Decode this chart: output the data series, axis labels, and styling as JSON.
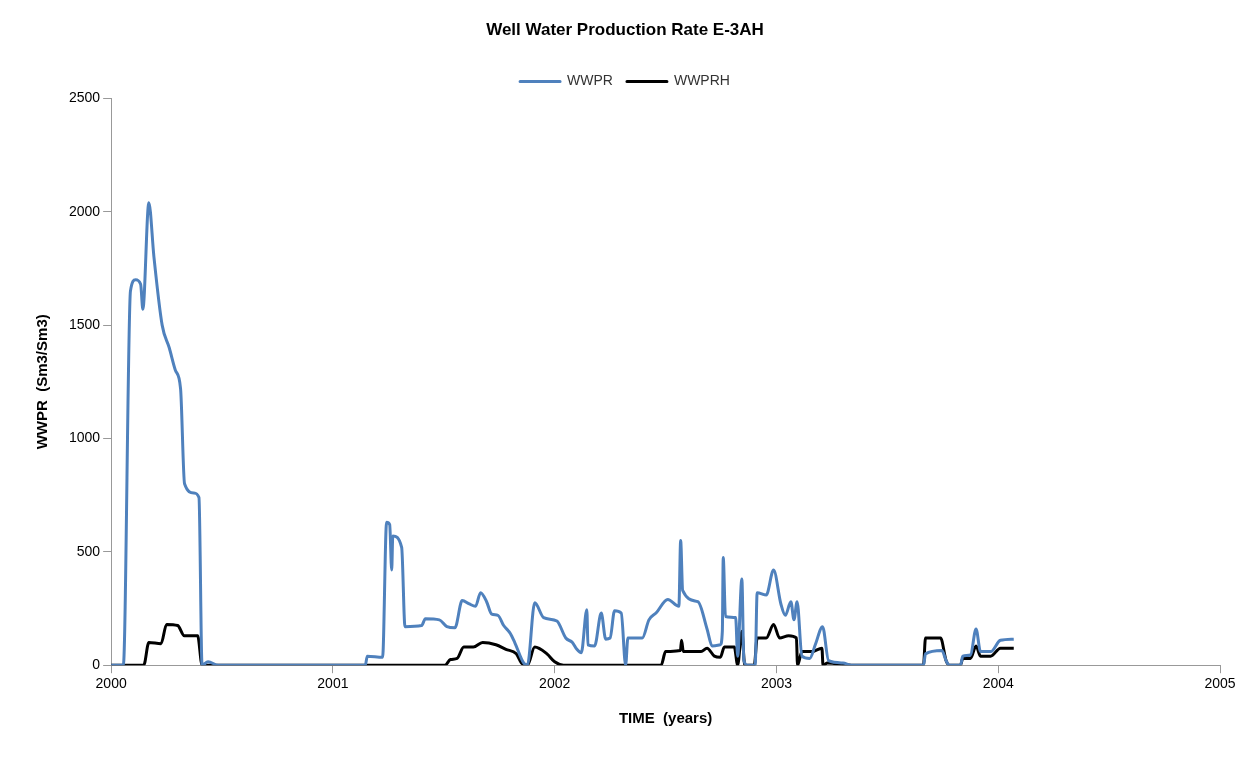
{
  "chart_data": {
    "type": "line",
    "title": "Well Water Production Rate E-3AH",
    "xlabel": "TIME  (years)",
    "ylabel": "WWPR  (Sm3/Sm3)",
    "xlim": [
      2000,
      2005
    ],
    "xticks": [
      2000,
      2001,
      2002,
      2003,
      2004,
      2005
    ],
    "ylim": [
      0,
      2500
    ],
    "yticks": [
      0,
      500,
      1000,
      1500,
      2000,
      2500
    ],
    "grid": false,
    "legend": "top",
    "marker": "none",
    "line_style": "solid",
    "series": [
      {
        "name": "WWPR",
        "color": "#4f81bd",
        "x": [
          2000,
          2000.055,
          2000.087,
          2000.11,
          2000.133,
          2000.143,
          2000.17,
          2000.193,
          2000.23,
          2000.262,
          2000.29,
          2000.313,
          2000.331,
          2000.373,
          2000.396,
          2000.41,
          2000.437,
          2000.483,
          2001.146,
          2001.155,
          2001.224,
          2001.242,
          2001.256,
          2001.265,
          2001.27,
          2001.31,
          2001.325,
          2001.4,
          2001.417,
          2001.48,
          2001.514,
          2001.55,
          2001.583,
          2001.615,
          2001.643,
          2001.666,
          2001.693,
          2001.716,
          2001.744,
          2001.77,
          2001.8,
          2001.82,
          2001.86,
          2001.877,
          2001.91,
          2001.95,
          2002.01,
          2002.05,
          2002.08,
          2002.1,
          2002.12,
          2002.145,
          2002.15,
          2002.18,
          2002.21,
          2002.23,
          2002.25,
          2002.27,
          2002.3,
          2002.32,
          2002.33,
          2002.395,
          2002.425,
          2002.457,
          2002.51,
          2002.56,
          2002.568,
          2002.577,
          2002.646,
          2002.687,
          2002.71,
          2002.747,
          2002.756,
          2002.76,
          2002.77,
          2002.816,
          2002.825,
          2002.844,
          2002.853,
          2002.87,
          2002.904,
          2002.913,
          2002.954,
          2002.987,
          2003.02,
          2003.04,
          2003.065,
          2003.079,
          2003.093,
          2003.115,
          2003.15,
          2003.175,
          2003.208,
          2003.235,
          2003.3,
          2003.337,
          2003.663,
          2003.672,
          2003.746,
          2003.765,
          2003.78,
          2003.83,
          2003.84,
          2003.875,
          2003.9,
          2003.92,
          2003.966,
          2004.01,
          2004.07
        ],
        "values": [
          0,
          0,
          1650,
          1700,
          1680,
          1570,
          2040,
          1800,
          1500,
          1400,
          1300,
          1220,
          800,
          760,
          740,
          0,
          15,
          0,
          0,
          40,
          35,
          630,
          620,
          420,
          570,
          520,
          170,
          175,
          205,
          200,
          170,
          165,
          285,
          270,
          260,
          320,
          280,
          225,
          220,
          175,
          140,
          100,
          10,
          0,
          275,
          210,
          195,
          120,
          100,
          70,
          55,
          245,
          90,
          85,
          230,
          115,
          120,
          240,
          230,
          0,
          120,
          120,
          200,
          230,
          290,
          260,
          550,
          330,
          280,
          160,
          85,
          90,
          150,
          475,
          215,
          210,
          40,
          380,
          20,
          0,
          0,
          320,
          310,
          420,
          270,
          220,
          280,
          200,
          280,
          40,
          30,
          90,
          170,
          20,
          10,
          0,
          0,
          50,
          65,
          20,
          0,
          0,
          40,
          45,
          160,
          60,
          60,
          110,
          115
        ]
      },
      {
        "name": "WWPRH",
        "color": "#000000",
        "x": [
          2000,
          2000.147,
          2000.17,
          2000.225,
          2000.25,
          2000.3,
          2000.33,
          2000.39,
          2000.41,
          2001.505,
          2001.53,
          2001.56,
          2001.59,
          2001.633,
          2001.675,
          2001.735,
          2001.78,
          2001.827,
          2001.85,
          2001.877,
          2001.91,
          2001.965,
          2002.0,
          2002.04,
          2002.48,
          2002.5,
          2002.567,
          2002.572,
          2002.58,
          2002.66,
          2002.687,
          2002.72,
          2002.747,
          2002.765,
          2002.81,
          2002.825,
          2002.844,
          2002.857,
          2002.9,
          2002.913,
          2002.954,
          2002.987,
          2003.014,
          2003.055,
          2003.09,
          2003.095,
          2003.115,
          2003.16,
          2003.205,
          2003.21,
          2003.23,
          2003.337,
          2003.663,
          2003.672,
          2003.74,
          2003.765,
          2003.78,
          2003.83,
          2003.84,
          2003.875,
          2003.9,
          2003.92,
          2003.966,
          2004.01,
          2004.07
        ],
        "values": [
          0,
          0,
          100,
          95,
          180,
          175,
          130,
          130,
          0,
          0,
          25,
          30,
          80,
          80,
          100,
          90,
          70,
          50,
          10,
          0,
          80,
          50,
          15,
          0,
          0,
          60,
          65,
          110,
          60,
          60,
          75,
          40,
          35,
          80,
          80,
          0,
          150,
          0,
          0,
          120,
          120,
          180,
          120,
          130,
          120,
          0,
          60,
          60,
          75,
          0,
          10,
          0,
          0,
          120,
          120,
          20,
          0,
          0,
          30,
          30,
          85,
          40,
          40,
          75,
          75
        ]
      }
    ]
  }
}
